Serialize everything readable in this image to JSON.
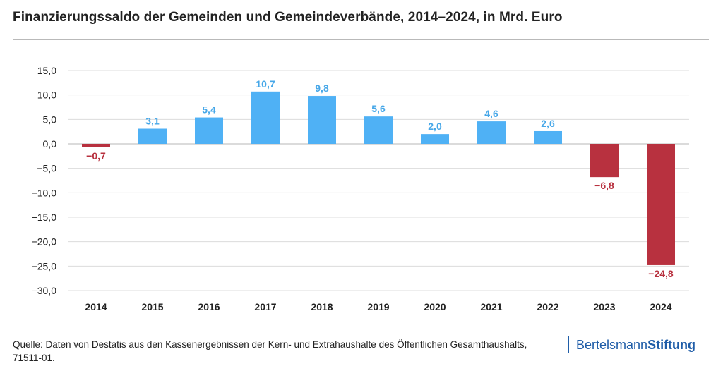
{
  "title": "Finanzierungssaldo der Gemeinden und Gemeindeverbände, 2014–2024, in Mrd. Euro",
  "source": "Quelle: Daten von Destatis aus den Kassenergebnissen der Kern- und Extrahaushalte des Öffentlichen Gesamthaushalts, 71511-01.",
  "logo": {
    "part1": "Bertelsmann",
    "part2": "Stiftung"
  },
  "colors": {
    "positive": "#4fb1f5",
    "negative": "#b8313f",
    "positive_label": "#46a7e8",
    "negative_label": "#b8313f",
    "logo": "#1f5da8"
  },
  "chart_data": {
    "type": "bar",
    "categories": [
      "2014",
      "2015",
      "2016",
      "2017",
      "2018",
      "2019",
      "2020",
      "2021",
      "2022",
      "2023",
      "2024"
    ],
    "values": [
      -0.7,
      3.1,
      5.4,
      10.7,
      9.8,
      5.6,
      2.0,
      4.6,
      2.6,
      -6.8,
      -24.8
    ],
    "value_labels": [
      "−0,7",
      "3,1",
      "5,4",
      "10,7",
      "9,8",
      "5,6",
      "2,0",
      "4,6",
      "2,6",
      "−6,8",
      "−24,8"
    ],
    "ylim": [
      -30,
      15
    ],
    "yticks": [
      15,
      10,
      5,
      0,
      -5,
      -10,
      -15,
      -20,
      -25,
      -30
    ],
    "ytick_labels": [
      "15,0",
      "10,0",
      "5,0",
      "0,0",
      "−5,0",
      "−10,0",
      "−15,0",
      "−20,0",
      "−25,0",
      "−30,0"
    ],
    "grid": true,
    "legend": "none"
  }
}
